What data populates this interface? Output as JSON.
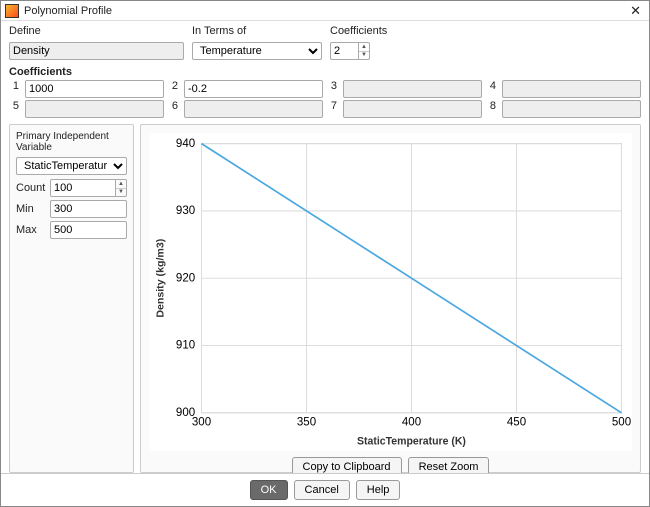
{
  "window": {
    "title": "Polynomial Profile"
  },
  "top": {
    "define_label": "Define",
    "interms_label": "In Terms of",
    "coeffs_label": "Coefficients",
    "define_value": "Density",
    "interms_value": "Temperature",
    "coeffs_count": "2"
  },
  "coeff": {
    "section": "Coefficients",
    "items": [
      {
        "idx": "1",
        "val": "1000",
        "enabled": true
      },
      {
        "idx": "2",
        "val": "-0.2",
        "enabled": true
      },
      {
        "idx": "3",
        "val": "",
        "enabled": false
      },
      {
        "idx": "4",
        "val": "",
        "enabled": false
      },
      {
        "idx": "5",
        "val": "",
        "enabled": false
      },
      {
        "idx": "6",
        "val": "",
        "enabled": false
      },
      {
        "idx": "7",
        "val": "",
        "enabled": false
      },
      {
        "idx": "8",
        "val": "",
        "enabled": false
      }
    ]
  },
  "piv": {
    "title": "Primary Independent Variable",
    "variable": "StaticTemperature (K)",
    "count_label": "Count",
    "count": "100",
    "min_label": "Min",
    "min": "300",
    "max_label": "Max",
    "max": "500"
  },
  "chart": {
    "type": "line",
    "xlabel": "StaticTemperature (K)",
    "ylabel": "Density (kg/m3)",
    "xlim": [
      300,
      500
    ],
    "ylim": [
      900,
      940
    ],
    "xticks": [
      300,
      350,
      400,
      450,
      500
    ],
    "yticks": [
      900,
      910,
      920,
      930,
      940
    ],
    "line_points": [
      [
        300,
        940
      ],
      [
        500,
        900
      ]
    ],
    "line_color": "#4aa8e0",
    "grid_color": "#dddddd",
    "border_color": "#cccccc",
    "background": "#ffffff",
    "label_fontsize": 10,
    "tick_fontsize": 10
  },
  "buttons": {
    "copy": "Copy to Clipboard",
    "reset": "Reset Zoom",
    "ok": "OK",
    "cancel": "Cancel",
    "help": "Help"
  }
}
